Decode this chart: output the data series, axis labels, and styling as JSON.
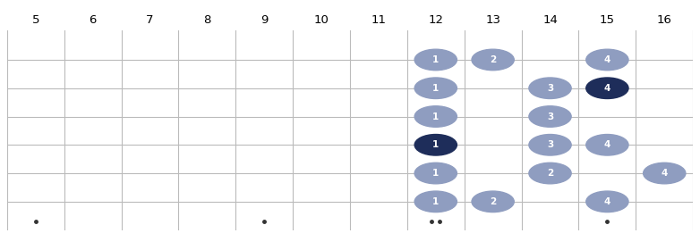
{
  "fret_numbers": [
    5,
    6,
    7,
    8,
    9,
    10,
    11,
    12,
    13,
    14,
    15,
    16
  ],
  "num_strings": 6,
  "fret_min": 5,
  "fret_max": 16,
  "notes": [
    {
      "fret": 12,
      "string": 1,
      "finger": "1",
      "root": false
    },
    {
      "fret": 13,
      "string": 1,
      "finger": "2",
      "root": false
    },
    {
      "fret": 15,
      "string": 1,
      "finger": "4",
      "root": false
    },
    {
      "fret": 12,
      "string": 2,
      "finger": "1",
      "root": false
    },
    {
      "fret": 14,
      "string": 2,
      "finger": "3",
      "root": false
    },
    {
      "fret": 15,
      "string": 2,
      "finger": "4",
      "root": true
    },
    {
      "fret": 12,
      "string": 3,
      "finger": "1",
      "root": false
    },
    {
      "fret": 14,
      "string": 3,
      "finger": "3",
      "root": false
    },
    {
      "fret": 12,
      "string": 4,
      "finger": "1",
      "root": true
    },
    {
      "fret": 14,
      "string": 4,
      "finger": "3",
      "root": false
    },
    {
      "fret": 15,
      "string": 4,
      "finger": "4",
      "root": false
    },
    {
      "fret": 12,
      "string": 5,
      "finger": "1",
      "root": false
    },
    {
      "fret": 14,
      "string": 5,
      "finger": "2",
      "root": false
    },
    {
      "fret": 16,
      "string": 5,
      "finger": "4",
      "root": false
    },
    {
      "fret": 12,
      "string": 6,
      "finger": "1",
      "root": false
    },
    {
      "fret": 13,
      "string": 6,
      "finger": "2",
      "root": false
    },
    {
      "fret": 15,
      "string": 6,
      "finger": "4",
      "root": false
    }
  ],
  "dot_color_normal": "#8f9dc0",
  "dot_color_root": "#1e2d5a",
  "dot_text_color": "#ffffff",
  "grid_color": "#bbbbbb",
  "background_color": "#ffffff",
  "single_tick_frets": [
    5,
    9,
    15
  ],
  "double_tick_frets": [
    12
  ]
}
